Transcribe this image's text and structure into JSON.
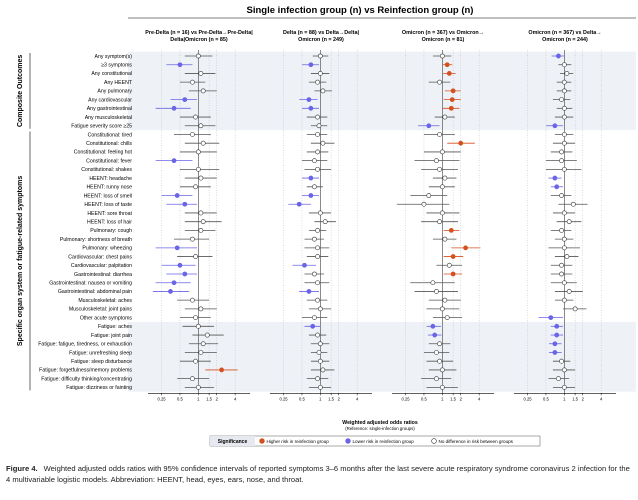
{
  "figure": {
    "header": "Single infection group (n) vs Reinfection group (n)",
    "caption_label": "Figure 4.",
    "caption_text": "Weighted adjusted odds ratios with 95% confidence intervals of reported symptoms 3–6 months after the last severe acute respiratory syndrome coronavirus 2 infection for the 4 multivariable logistic models. Abbreviation: HEENT, head, eyes, ears, nose, and throat."
  },
  "chart_data": {
    "type": "scatter",
    "subtype": "forest-plot",
    "panels": [
      {
        "title_line1": "Pre-Delta (n = 16) vs Pre-Delta→Pre-Delta|",
        "title_line2": "Delta|Omicron (n = 85)"
      },
      {
        "title_line1": "Delta (n = 88) vs Delta→Delta|",
        "title_line2": "Omicron (n = 249)"
      },
      {
        "title_line1": "Omicron (n = 367) vs Omicron→",
        "title_line2": "Omicron (n = 81)"
      },
      {
        "title_line1": "Omicron (n = 367) vs Delta→",
        "title_line2": "Omicron (n = 244)"
      }
    ],
    "groups": [
      {
        "label": "Composite Outcomes",
        "start": 0,
        "end": 8
      },
      {
        "label": "Specific organ system or fatigue-related symptoms",
        "start": 9,
        "end": 38
      }
    ],
    "rows": [
      "Any symptom(s)",
      "≥3 symptoms",
      "Any constitutional",
      "Any HEENT",
      "Any pulmonary",
      "Any cardiovascular",
      "Any gastrointestinal",
      "Any musculoskeletal",
      "Fatigue severity score ≥25",
      "Constitutional: tired",
      "Constitutional: chills",
      "Constitutional: feeling hot",
      "Constitutional: fever",
      "Constitutional: shakes",
      "HEENT: headache",
      "HEENT: runny nose",
      "HEENT: loss of smell",
      "HEENT: loss of taste",
      "HEENT: sore throat",
      "HEENT: loss of hair",
      "Pulmonary: cough",
      "Pulmonary: shortness of breath",
      "Pulmonary: wheezing",
      "Cardiovascular: chest pains",
      "Cardiovascular: palpitation",
      "Gastrointestinal: diarrhea",
      "Gastrointestinal: nausea or vomiting",
      "Gastrointestinal: abdominal pain",
      "Musculoskeletal: aches",
      "Musculoskeletal: joint pains",
      "Other acute symptoms",
      "Fatigue: aches",
      "Fatigue: joint pain",
      "Fatigue: fatigue, tiredness, or exhaustion",
      "Fatigue: unrefreshing sleep",
      "Fatigue: sleep disturbance",
      "Fatigue: forgetfulness/memory problems",
      "Fatigue: difficulty thinking/concentrating",
      "Fatigue: dizziness or fainting"
    ],
    "x_scale": "log",
    "xlim": [
      0.15,
      7
    ],
    "x_ticks": [
      0.25,
      0.5,
      1,
      1.5,
      2,
      4
    ],
    "x_tick_labels": [
      "0.25",
      "0.5",
      "1",
      "1.5",
      "2",
      "4"
    ],
    "xlabel": "Weighted adjusted odds ratios",
    "xlabel_sub": "(Reference: single-infection groups)",
    "reference_line": 1,
    "legend": {
      "title": "Significance",
      "placement": "bottom",
      "items": [
        {
          "key": "higher",
          "label": "Higher risk in reinfection group",
          "color": "#d4501e"
        },
        {
          "key": "lower",
          "label": "Lower risk in reinfection group",
          "color": "#6a64e6"
        },
        {
          "key": "none",
          "label": "No difference in risk between groups",
          "color": "#ffffff"
        }
      ]
    },
    "series": [
      {
        "panel": 1,
        "or": [
          1.0,
          0.5,
          1.1,
          0.8,
          1.2,
          0.6,
          0.4,
          0.9,
          1.1,
          0.8,
          1.2,
          1.0,
          0.4,
          1.0,
          1.1,
          0.9,
          0.45,
          0.6,
          1.1,
          1.2,
          1.1,
          0.8,
          0.45,
          0.9,
          0.5,
          0.6,
          0.4,
          0.35,
          0.8,
          1.1,
          0.9,
          1.0,
          1.4,
          1.2,
          1.1,
          0.9,
          2.4,
          0.8,
          1.0
        ],
        "lo": [
          0.6,
          0.3,
          0.6,
          0.5,
          0.7,
          0.35,
          0.2,
          0.5,
          0.6,
          0.4,
          0.6,
          0.5,
          0.2,
          0.5,
          0.6,
          0.5,
          0.25,
          0.3,
          0.6,
          0.6,
          0.6,
          0.4,
          0.2,
          0.45,
          0.25,
          0.3,
          0.2,
          0.18,
          0.45,
          0.6,
          0.5,
          0.55,
          0.8,
          0.7,
          0.6,
          0.5,
          1.3,
          0.45,
          0.6
        ],
        "hi": [
          1.7,
          0.8,
          1.9,
          1.3,
          2.0,
          0.95,
          0.75,
          1.6,
          1.9,
          1.6,
          2.2,
          2.0,
          0.8,
          2.2,
          2.0,
          1.6,
          0.8,
          0.95,
          2.0,
          2.4,
          1.9,
          1.5,
          0.95,
          1.7,
          0.9,
          0.95,
          0.75,
          0.7,
          1.5,
          2.0,
          1.6,
          1.8,
          2.6,
          2.1,
          2.0,
          1.6,
          4.4,
          1.5,
          1.8
        ],
        "sig": [
          "none",
          "lower",
          "none",
          "none",
          "none",
          "lower",
          "lower",
          "none",
          "none",
          "none",
          "none",
          "none",
          "lower",
          "none",
          "none",
          "none",
          "lower",
          "lower",
          "none",
          "none",
          "none",
          "none",
          "lower",
          "none",
          "lower",
          "lower",
          "lower",
          "lower",
          "none",
          "none",
          "none",
          "none",
          "none",
          "none",
          "none",
          "none",
          "higher",
          "none",
          "none"
        ]
      },
      {
        "panel": 2,
        "or": [
          1.0,
          0.7,
          1.0,
          0.9,
          1.1,
          0.65,
          0.7,
          0.9,
          0.95,
          0.9,
          1.1,
          0.9,
          0.8,
          0.9,
          0.7,
          0.8,
          0.7,
          0.45,
          1.0,
          1.2,
          0.9,
          0.8,
          0.9,
          0.9,
          0.55,
          0.8,
          0.9,
          0.65,
          0.9,
          1.0,
          0.8,
          0.75,
          0.9,
          1.0,
          0.95,
          1.0,
          1.1,
          0.9,
          1.0
        ],
        "lo": [
          0.75,
          0.5,
          0.7,
          0.65,
          0.8,
          0.45,
          0.5,
          0.6,
          0.7,
          0.6,
          0.7,
          0.6,
          0.5,
          0.55,
          0.5,
          0.6,
          0.5,
          0.3,
          0.65,
          0.8,
          0.65,
          0.55,
          0.55,
          0.6,
          0.35,
          0.55,
          0.55,
          0.45,
          0.6,
          0.65,
          0.5,
          0.55,
          0.65,
          0.7,
          0.7,
          0.7,
          0.7,
          0.6,
          0.65
        ],
        "hi": [
          1.35,
          0.95,
          1.4,
          1.25,
          1.55,
          0.9,
          0.95,
          1.3,
          1.3,
          1.3,
          1.7,
          1.35,
          1.3,
          1.5,
          0.95,
          1.1,
          0.95,
          0.7,
          1.5,
          1.8,
          1.25,
          1.15,
          1.4,
          1.35,
          0.85,
          1.15,
          1.4,
          0.95,
          1.3,
          1.5,
          1.3,
          1.0,
          1.25,
          1.4,
          1.3,
          1.4,
          1.7,
          1.35,
          1.5
        ],
        "sig": [
          "none",
          "lower",
          "none",
          "none",
          "none",
          "lower",
          "lower",
          "none",
          "none",
          "none",
          "none",
          "none",
          "none",
          "none",
          "lower",
          "none",
          "lower",
          "lower",
          "none",
          "none",
          "none",
          "none",
          "none",
          "none",
          "lower",
          "none",
          "none",
          "lower",
          "none",
          "none",
          "none",
          "lower",
          "none",
          "none",
          "none",
          "none",
          "none",
          "none",
          "none"
        ]
      },
      {
        "panel": 3,
        "or": [
          1.0,
          1.2,
          1.3,
          0.9,
          1.5,
          1.45,
          1.4,
          1.1,
          0.6,
          0.9,
          2.0,
          1.0,
          0.8,
          0.9,
          1.1,
          1.0,
          0.6,
          0.5,
          1.0,
          0.9,
          1.4,
          1.1,
          2.4,
          1.5,
          1.3,
          1.5,
          0.7,
          0.8,
          1.1,
          1.0,
          1.2,
          0.7,
          0.75,
          0.9,
          0.8,
          0.9,
          1.0,
          0.8,
          1.0
        ],
        "lo": [
          0.7,
          1.02,
          1.03,
          0.6,
          1.1,
          1.05,
          1.02,
          0.75,
          0.4,
          0.5,
          1.2,
          0.5,
          0.35,
          0.45,
          0.7,
          0.6,
          0.3,
          0.18,
          0.55,
          0.45,
          1.05,
          0.7,
          1.4,
          1.05,
          0.8,
          1.05,
          0.3,
          0.35,
          0.6,
          0.55,
          0.7,
          0.55,
          0.58,
          0.6,
          0.5,
          0.55,
          0.6,
          0.45,
          0.55
        ],
        "hi": [
          1.4,
          1.45,
          1.65,
          1.35,
          2.0,
          2.0,
          1.9,
          1.6,
          0.9,
          1.6,
          3.4,
          2.0,
          1.9,
          1.8,
          1.7,
          1.6,
          1.2,
          1.3,
          1.9,
          1.8,
          1.9,
          1.7,
          4.2,
          2.2,
          2.1,
          2.1,
          1.6,
          1.8,
          2.0,
          1.9,
          2.1,
          0.95,
          0.97,
          1.35,
          1.3,
          1.5,
          1.7,
          1.4,
          1.8
        ],
        "sig": [
          "none",
          "higher",
          "higher",
          "none",
          "higher",
          "higher",
          "higher",
          "none",
          "lower",
          "none",
          "higher",
          "none",
          "none",
          "none",
          "none",
          "none",
          "none",
          "none",
          "none",
          "none",
          "higher",
          "none",
          "higher",
          "higher",
          "none",
          "higher",
          "none",
          "none",
          "none",
          "none",
          "none",
          "lower",
          "lower",
          "none",
          "none",
          "none",
          "none",
          "none",
          "none"
        ]
      },
      {
        "panel": 4,
        "or": [
          0.8,
          1.0,
          1.1,
          1.0,
          1.0,
          0.9,
          1.0,
          1.0,
          0.7,
          1.0,
          1.0,
          0.9,
          0.9,
          1.0,
          0.7,
          0.75,
          0.9,
          1.4,
          1.0,
          1.2,
          0.9,
          1.0,
          1.0,
          1.1,
          0.9,
          0.9,
          1.0,
          1.2,
          1.0,
          1.5,
          0.6,
          0.75,
          0.75,
          0.7,
          0.7,
          0.9,
          1.0,
          0.8,
          1.0
        ],
        "lo": [
          0.62,
          0.8,
          0.85,
          0.75,
          0.75,
          0.65,
          0.75,
          0.7,
          0.5,
          0.7,
          0.65,
          0.6,
          0.5,
          0.5,
          0.55,
          0.6,
          0.6,
          0.8,
          0.65,
          0.75,
          0.6,
          0.7,
          0.55,
          0.7,
          0.6,
          0.6,
          0.6,
          0.7,
          0.7,
          0.95,
          0.38,
          0.6,
          0.6,
          0.56,
          0.56,
          0.65,
          0.65,
          0.55,
          0.65
        ],
        "hi": [
          0.98,
          1.3,
          1.4,
          1.3,
          1.3,
          1.25,
          1.35,
          1.4,
          0.95,
          1.4,
          1.5,
          1.35,
          1.6,
          1.9,
          0.9,
          0.95,
          1.3,
          2.4,
          1.5,
          1.9,
          1.3,
          1.4,
          1.8,
          1.7,
          1.35,
          1.35,
          1.6,
          2.0,
          1.4,
          2.3,
          0.95,
          0.95,
          0.95,
          0.9,
          0.9,
          1.25,
          1.5,
          1.2,
          1.5
        ],
        "sig": [
          "lower",
          "none",
          "none",
          "none",
          "none",
          "none",
          "none",
          "none",
          "lower",
          "none",
          "none",
          "none",
          "none",
          "none",
          "lower",
          "lower",
          "none",
          "none",
          "none",
          "none",
          "none",
          "none",
          "none",
          "none",
          "none",
          "none",
          "none",
          "none",
          "none",
          "none",
          "lower",
          "lower",
          "lower",
          "lower",
          "lower",
          "none",
          "none",
          "none",
          "none"
        ]
      }
    ]
  }
}
